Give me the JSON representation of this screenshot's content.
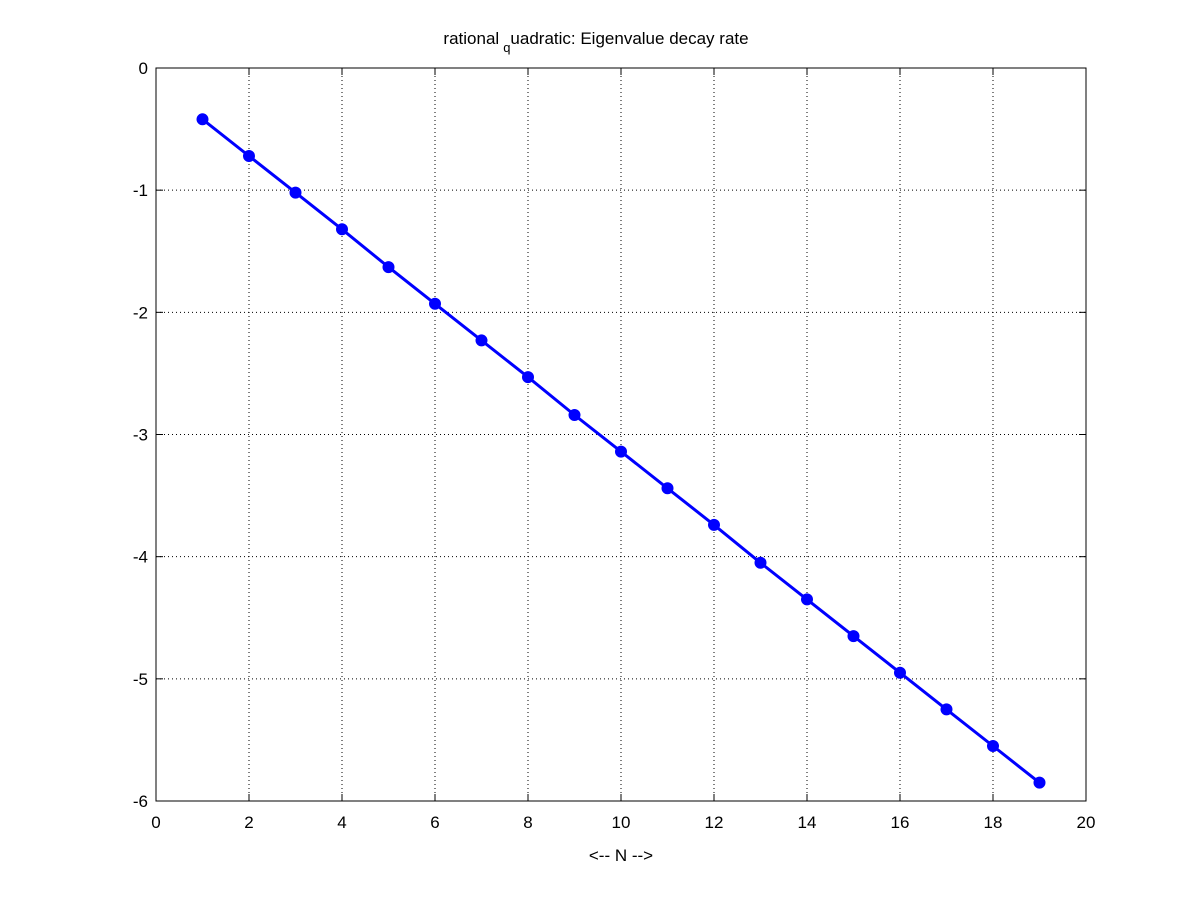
{
  "chart_data": {
    "type": "line",
    "title": {
      "before": "rational",
      "subscript": "q",
      "after": "uadratic: Eigenvalue decay rate"
    },
    "xlabel": "<-- N -->",
    "ylabel": "",
    "xlim": [
      0,
      20
    ],
    "ylim": [
      -6,
      0
    ],
    "x_ticks": [
      0,
      2,
      4,
      6,
      8,
      10,
      12,
      14,
      16,
      18,
      20
    ],
    "y_ticks": [
      0,
      -1,
      -2,
      -3,
      -4,
      -5,
      -6
    ],
    "x_tick_labels": [
      "0",
      "2",
      "4",
      "6",
      "8",
      "10",
      "12",
      "14",
      "16",
      "18",
      "20"
    ],
    "y_tick_labels": [
      "0",
      "-1",
      "-2",
      "-3",
      "-4",
      "-5",
      "-6"
    ],
    "grid": true,
    "grid_style": "dotted",
    "legend": "none",
    "series": [
      {
        "color": "#0000ff",
        "marker": "filled-circle",
        "x": [
          1,
          2,
          3,
          4,
          5,
          6,
          7,
          8,
          9,
          10,
          11,
          12,
          13,
          14,
          15,
          16,
          17,
          18,
          19
        ],
        "y": [
          -0.42,
          -0.72,
          -1.02,
          -1.32,
          -1.63,
          -1.93,
          -2.23,
          -2.53,
          -2.84,
          -3.14,
          -3.44,
          -3.74,
          -4.05,
          -4.35,
          -4.65,
          -4.95,
          -5.25,
          -5.55,
          -5.85
        ]
      }
    ]
  }
}
